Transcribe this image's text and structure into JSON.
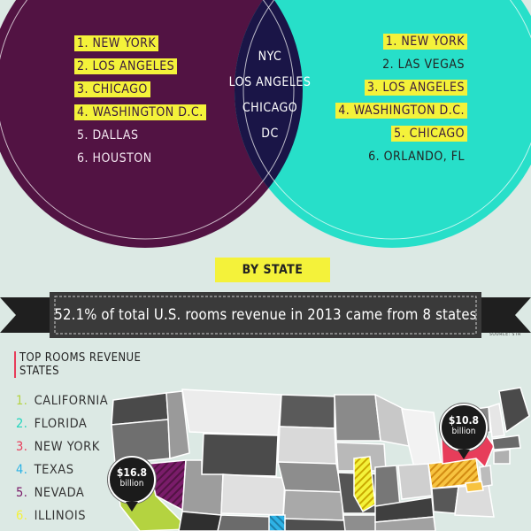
{
  "venn": {
    "left_circle_color": "#521343",
    "right_circle_color": "#27dfc9",
    "overlap_color": "#1a1547",
    "highlight_color": "#f4f23a",
    "left_items": [
      {
        "label": "1. NEW YORK",
        "highlighted": true
      },
      {
        "label": "2. LOS ANGELES",
        "highlighted": true
      },
      {
        "label": "3. CHICAGO",
        "highlighted": true
      },
      {
        "label": "4. WASHINGTON D.C.",
        "highlighted": true
      },
      {
        "label": "5. DALLAS",
        "highlighted": false
      },
      {
        "label": "6. HOUSTON",
        "highlighted": false
      }
    ],
    "overlap_items": [
      "NYC",
      "LOS ANGELES",
      "CHICAGO",
      "DC"
    ],
    "right_items": [
      {
        "label": "1. NEW YORK",
        "highlighted": true
      },
      {
        "label": "2. LAS VEGAS",
        "highlighted": false
      },
      {
        "label": "3. LOS ANGELES",
        "highlighted": true
      },
      {
        "label": "4. WASHINGTON D.C.",
        "highlighted": true
      },
      {
        "label": "5. CHICAGO",
        "highlighted": true
      },
      {
        "label": "6. ORLANDO, FL",
        "highlighted": false
      }
    ]
  },
  "by_state_label": "BY STATE",
  "banner_text": "52.1% of total U.S. rooms revenue in 2013 came from 8 states",
  "source_text": "SOURCE: STR",
  "top_states": {
    "title": "TOP ROOMS REVENUE STATES",
    "items": [
      {
        "num": "1.",
        "name": "CALIFORNIA",
        "color": "#b4d340"
      },
      {
        "num": "2.",
        "name": "FLORIDA",
        "color": "#1fd5bd"
      },
      {
        "num": "3.",
        "name": "NEW YORK",
        "color": "#e73d5a"
      },
      {
        "num": "4.",
        "name": "TEXAS",
        "color": "#2eb3e6"
      },
      {
        "num": "5.",
        "name": "NEVADA",
        "color": "#7a1c6a"
      },
      {
        "num": "6.",
        "name": "ILLINOIS",
        "color": "#f4f23a"
      }
    ]
  },
  "pins": {
    "west": {
      "amount": "$16.8",
      "unit": "billion"
    },
    "east": {
      "amount": "$10.8",
      "unit": "billion"
    }
  }
}
